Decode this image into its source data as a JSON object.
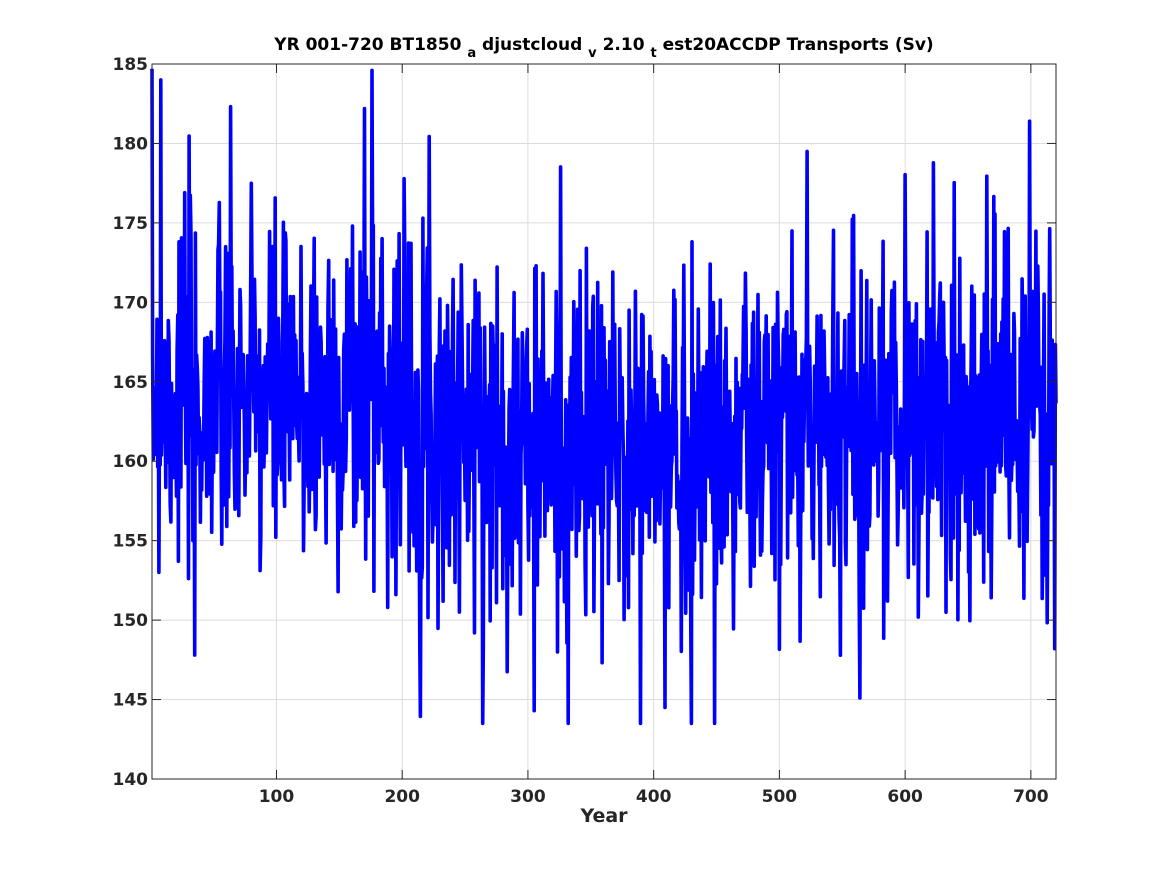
{
  "chart_data": {
    "type": "line",
    "title_parts": [
      "YR 001-720 BT1850",
      "a",
      "djustcloud",
      "v",
      "2.10",
      "t",
      "est20ACCDP Transports (Sv)"
    ],
    "xlabel": "Year",
    "ylabel": "",
    "xlim": [
      1,
      720
    ],
    "ylim": [
      140,
      185
    ],
    "xticks": [
      100,
      200,
      300,
      400,
      500,
      600,
      700
    ],
    "xtick_labels": [
      "100",
      "200",
      "300",
      "400",
      "500",
      "600",
      "700"
    ],
    "yticks": [
      140,
      145,
      150,
      155,
      160,
      165,
      170,
      175,
      180,
      185
    ],
    "ytick_labels": [
      "140",
      "145",
      "150",
      "155",
      "160",
      "165",
      "170",
      "175",
      "180",
      "185"
    ],
    "grid": true,
    "series": [
      {
        "color": "#0000ff",
        "x_start": 1,
        "x_step": 0.5,
        "n_points": 1439,
        "mean_profile": {
          "x": [
            1,
            60,
            120,
            175,
            250,
            330,
            400,
            470,
            560,
            640,
            720
          ],
          "y": [
            164.5,
            163.8,
            163.5,
            165.2,
            162.0,
            160.8,
            160.5,
            161.5,
            162.6,
            163.0,
            163.5
          ]
        },
        "amplitude": 5.6,
        "range": [
          143.5,
          184.7
        ],
        "peaks": [
          {
            "x": 1,
            "y": 184.7
          },
          {
            "x": 8,
            "y": 184.0
          },
          {
            "x": 176,
            "y": 184.6
          },
          {
            "x": 170,
            "y": 182.2
          },
          {
            "x": 699,
            "y": 181.4
          },
          {
            "x": 522,
            "y": 179.5
          }
        ],
        "troughs": [
          {
            "x": 332,
            "y": 143.5
          },
          {
            "x": 430,
            "y": 143.5
          },
          {
            "x": 305,
            "y": 144.3
          },
          {
            "x": 409,
            "y": 144.5
          },
          {
            "x": 35,
            "y": 147.8
          },
          {
            "x": 564,
            "y": 145.1
          },
          {
            "x": 719,
            "y": 148.2
          }
        ]
      }
    ]
  }
}
